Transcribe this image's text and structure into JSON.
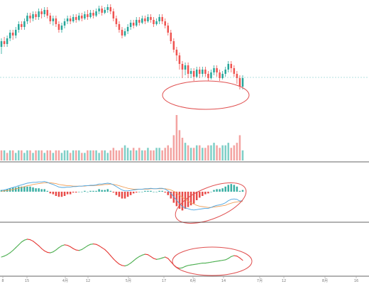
{
  "colors": {
    "up": "#26a69a",
    "down": "#ef5350",
    "vol_up": "#7fcfc7",
    "vol_down": "#f3a3a1",
    "dif": "#4aa3df",
    "dea": "#f0a05a",
    "hist_up": "#26a69a",
    "hist_down": "#e53935",
    "osc_up": "#4caf50",
    "osc_down": "#e53935",
    "annotation": "#e05050",
    "guide": "#9ad7d7",
    "divider": "#333333"
  },
  "x_axis": {
    "tick_labels": [
      "8",
      "15",
      "4月",
      "12",
      "5月",
      "17",
      "6月",
      "14",
      "7月",
      "12",
      "8月",
      "16"
    ]
  },
  "chart_data": [
    {
      "type": "candlestick",
      "panel": "price",
      "grid": false,
      "ohlc": [
        [
          68,
          72,
          63,
          74
        ],
        [
          72,
          70,
          68,
          75
        ],
        [
          70,
          74,
          68,
          76
        ],
        [
          74,
          78,
          72,
          80
        ],
        [
          78,
          76,
          73,
          80
        ],
        [
          76,
          80,
          74,
          82
        ],
        [
          80,
          84,
          78,
          86
        ],
        [
          84,
          82,
          80,
          86
        ],
        [
          82,
          86,
          80,
          88
        ],
        [
          86,
          90,
          84,
          92
        ],
        [
          90,
          88,
          85,
          92
        ],
        [
          88,
          91,
          86,
          93
        ],
        [
          91,
          89,
          87,
          93
        ],
        [
          89,
          93,
          87,
          95
        ],
        [
          93,
          91,
          88,
          95
        ],
        [
          91,
          94,
          89,
          96
        ],
        [
          94,
          90,
          88,
          96
        ],
        [
          90,
          86,
          84,
          92
        ],
        [
          86,
          88,
          83,
          90
        ],
        [
          88,
          84,
          82,
          90
        ],
        [
          84,
          80,
          78,
          86
        ],
        [
          80,
          83,
          78,
          85
        ],
        [
          83,
          86,
          81,
          88
        ],
        [
          86,
          88,
          84,
          90
        ],
        [
          88,
          86,
          84,
          90
        ],
        [
          86,
          89,
          85,
          91
        ],
        [
          89,
          87,
          85,
          91
        ],
        [
          87,
          90,
          86,
          92
        ],
        [
          90,
          88,
          86,
          92
        ],
        [
          88,
          91,
          87,
          93
        ],
        [
          91,
          89,
          87,
          94
        ],
        [
          89,
          92,
          88,
          94
        ],
        [
          92,
          90,
          88,
          94
        ],
        [
          90,
          93,
          89,
          95
        ],
        [
          93,
          95,
          91,
          97
        ],
        [
          95,
          92,
          90,
          97
        ],
        [
          92,
          94,
          91,
          96
        ],
        [
          94,
          96,
          92,
          98
        ],
        [
          96,
          93,
          91,
          98
        ],
        [
          93,
          88,
          86,
          95
        ],
        [
          88,
          84,
          82,
          90
        ],
        [
          84,
          80,
          78,
          86
        ],
        [
          80,
          76,
          74,
          82
        ],
        [
          76,
          79,
          75,
          81
        ],
        [
          79,
          82,
          77,
          84
        ],
        [
          82,
          85,
          80,
          87
        ],
        [
          85,
          83,
          81,
          87
        ],
        [
          83,
          87,
          82,
          89
        ],
        [
          87,
          85,
          83,
          89
        ],
        [
          85,
          88,
          84,
          90
        ],
        [
          88,
          86,
          84,
          90
        ],
        [
          86,
          89,
          85,
          91
        ],
        [
          89,
          87,
          85,
          91
        ],
        [
          87,
          84,
          82,
          89
        ],
        [
          84,
          86,
          83,
          88
        ],
        [
          86,
          89,
          84,
          91
        ],
        [
          89,
          86,
          84,
          91
        ],
        [
          86,
          83,
          81,
          88
        ],
        [
          83,
          78,
          76,
          85
        ],
        [
          78,
          72,
          70,
          80
        ],
        [
          72,
          66,
          64,
          74
        ],
        [
          66,
          62,
          58,
          68
        ],
        [
          62,
          56,
          52,
          64
        ],
        [
          56,
          52,
          46,
          58
        ],
        [
          52,
          55,
          48,
          57
        ],
        [
          55,
          49,
          46,
          57
        ],
        [
          49,
          51,
          46,
          53
        ],
        [
          51,
          47,
          44,
          53
        ],
        [
          47,
          52,
          46,
          54
        ],
        [
          52,
          49,
          46,
          54
        ],
        [
          49,
          52,
          47,
          54
        ],
        [
          52,
          49,
          47,
          54
        ],
        [
          49,
          46,
          44,
          51
        ],
        [
          46,
          50,
          45,
          52
        ],
        [
          50,
          53,
          48,
          55
        ],
        [
          53,
          50,
          47,
          55
        ],
        [
          50,
          46,
          44,
          52
        ],
        [
          46,
          49,
          45,
          51
        ],
        [
          49,
          52,
          47,
          54
        ],
        [
          52,
          56,
          50,
          58
        ],
        [
          56,
          53,
          50,
          58
        ],
        [
          53,
          49,
          47,
          55
        ],
        [
          49,
          46,
          42,
          51
        ],
        [
          46,
          40,
          38,
          48
        ],
        [
          40,
          46,
          38,
          48
        ]
      ],
      "guide_level": 46.5,
      "annotation": "ellipse"
    },
    {
      "type": "bar",
      "panel": "volume",
      "values": [
        4,
        4,
        3,
        4,
        4,
        3,
        4,
        4,
        3,
        4,
        4,
        3,
        4,
        4,
        4,
        3,
        4,
        4,
        3,
        4,
        4,
        3,
        4,
        4,
        3,
        4,
        4,
        4,
        3,
        3,
        4,
        4,
        4,
        4,
        3,
        4,
        4,
        3,
        4,
        5,
        4,
        4,
        5,
        6,
        5,
        4,
        5,
        4,
        5,
        4,
        4,
        5,
        4,
        4,
        5,
        5,
        4,
        5,
        6,
        5,
        10,
        18,
        12,
        9,
        7,
        6,
        5,
        5,
        6,
        6,
        5,
        5,
        6,
        6,
        7,
        6,
        5,
        6,
        6,
        7,
        5,
        6,
        7,
        10,
        4
      ],
      "up": [
        0,
        1,
        0,
        1,
        0,
        1,
        1,
        0,
        1,
        1,
        0,
        1,
        0,
        1,
        0,
        1,
        0,
        0,
        1,
        0,
        0,
        1,
        1,
        1,
        0,
        1,
        0,
        1,
        0,
        1,
        0,
        1,
        0,
        1,
        1,
        0,
        1,
        1,
        0,
        0,
        0,
        0,
        0,
        1,
        1,
        1,
        0,
        1,
        0,
        1,
        0,
        1,
        0,
        0,
        1,
        1,
        0,
        0,
        0,
        0,
        0,
        0,
        0,
        0,
        1,
        0,
        1,
        0,
        1,
        0,
        1,
        0,
        0,
        1,
        1,
        0,
        0,
        1,
        1,
        1,
        0,
        0,
        0,
        0,
        1
      ]
    },
    {
      "type": "line",
      "panel": "macd",
      "series": [
        {
          "values": [
            0.3,
            0.4,
            0.6,
            0.8,
            1.0,
            1.2,
            1.4,
            1.6,
            1.8,
            2.0,
            2.1,
            2.2,
            2.2,
            2.3,
            2.3,
            2.4,
            2.2,
            1.9,
            1.7,
            1.4,
            1.1,
            1.0,
            1.0,
            1.1,
            1.1,
            1.2,
            1.2,
            1.3,
            1.3,
            1.4,
            1.4,
            1.5,
            1.5,
            1.6,
            1.8,
            1.8,
            1.9,
            2.0,
            1.9,
            1.6,
            1.2,
            0.8,
            0.4,
            0.2,
            0.2,
            0.3,
            0.4,
            0.5,
            0.6,
            0.6,
            0.7,
            0.7,
            0.8,
            0.7,
            0.7,
            0.8,
            0.8,
            0.6,
            0.2,
            -0.4,
            -1.2,
            -2.0,
            -2.8,
            -3.5,
            -3.8,
            -4.0,
            -4.2,
            -4.3,
            -4.2,
            -4.1,
            -4.0,
            -3.9,
            -3.9,
            -3.7,
            -3.4,
            -3.2,
            -3.1,
            -2.9,
            -2.6,
            -2.1,
            -1.8,
            -1.7,
            -1.8,
            -2.2,
            -2.1
          ]
        },
        {
          "values": [
            0.1,
            0.2,
            0.3,
            0.4,
            0.5,
            0.7,
            0.8,
            1.0,
            1.2,
            1.4,
            1.5,
            1.7,
            1.8,
            1.9,
            2.0,
            2.1,
            2.1,
            2.1,
            2.0,
            1.9,
            1.7,
            1.6,
            1.5,
            1.4,
            1.4,
            1.3,
            1.3,
            1.3,
            1.3,
            1.3,
            1.4,
            1.4,
            1.4,
            1.5,
            1.5,
            1.6,
            1.7,
            1.7,
            1.8,
            1.7,
            1.6,
            1.4,
            1.2,
            1.0,
            0.8,
            0.7,
            0.6,
            0.6,
            0.6,
            0.6,
            0.6,
            0.6,
            0.7,
            0.7,
            0.7,
            0.7,
            0.7,
            0.7,
            0.6,
            0.4,
            0.1,
            -0.3,
            -0.8,
            -1.3,
            -1.8,
            -2.2,
            -2.6,
            -2.9,
            -3.2,
            -3.4,
            -3.5,
            -3.6,
            -3.7,
            -3.7,
            -3.6,
            -3.5,
            -3.4,
            -3.3,
            -3.2,
            -2.9,
            -2.7,
            -2.5,
            -2.4,
            -2.3,
            -2.3
          ]
        }
      ],
      "histogram": true,
      "annotation": "ellipse"
    },
    {
      "type": "line",
      "panel": "oscillator",
      "values": [
        0,
        2,
        5,
        9,
        14,
        20,
        26,
        32,
        36,
        38,
        37,
        34,
        29,
        24,
        18,
        13,
        10,
        9,
        11,
        15,
        20,
        24,
        26,
        25,
        22,
        18,
        15,
        14,
        16,
        20,
        24,
        27,
        28,
        27,
        24,
        20,
        16,
        10,
        3,
        -4,
        -10,
        -15,
        -18,
        -19,
        -17,
        -13,
        -8,
        -3,
        1,
        4,
        6,
        5,
        1,
        -3,
        -5,
        -4,
        -2,
        0,
        -3,
        -10,
        -17,
        -22,
        -24,
        -23,
        -20,
        -18,
        -17,
        -16,
        -15,
        -14,
        -13,
        -13,
        -12,
        -11,
        -10,
        -9,
        -8,
        -7,
        -6,
        -3,
        1,
        3,
        2,
        -2,
        -7
      ],
      "annotation": "ellipse"
    }
  ]
}
